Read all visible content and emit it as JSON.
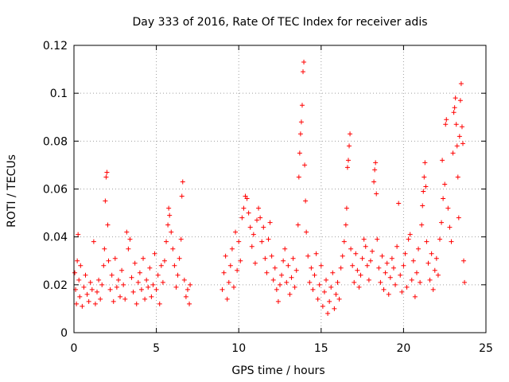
{
  "chart_data": {
    "type": "scatter",
    "title": "Day 333 of 2016, Rate Of TEC Index for receiver adis",
    "xlabel": "GPS time / hours",
    "ylabel": "ROTI / TECUs",
    "xlim": [
      0,
      25
    ],
    "ylim": [
      0,
      0.12
    ],
    "xticks": [
      0,
      5,
      10,
      15,
      20,
      25
    ],
    "xtick_labels": [
      "0",
      "5",
      "10",
      "15",
      "20",
      "25"
    ],
    "yticks": [
      0,
      0.02,
      0.04,
      0.06,
      0.08,
      0.1,
      0.12
    ],
    "ytick_labels": [
      "0",
      "0.02",
      "0.04",
      "0.06",
      "0.08",
      "0.1",
      "0.12"
    ],
    "grid": true,
    "marker": "+",
    "color": "#ff0000",
    "series": [
      {
        "name": "adis",
        "points": [
          [
            0.05,
            0.025
          ],
          [
            0.1,
            0.018
          ],
          [
            0.15,
            0.012
          ],
          [
            0.2,
            0.03
          ],
          [
            0.25,
            0.041
          ],
          [
            0.3,
            0.022
          ],
          [
            0.35,
            0.015
          ],
          [
            0.4,
            0.028
          ],
          [
            0.5,
            0.011
          ],
          [
            0.6,
            0.019
          ],
          [
            0.7,
            0.024
          ],
          [
            0.8,
            0.016
          ],
          [
            0.9,
            0.013
          ],
          [
            1.0,
            0.021
          ],
          [
            1.1,
            0.018
          ],
          [
            1.2,
            0.038
          ],
          [
            1.3,
            0.012
          ],
          [
            1.4,
            0.017
          ],
          [
            1.5,
            0.022
          ],
          [
            1.6,
            0.014
          ],
          [
            1.7,
            0.02
          ],
          [
            1.8,
            0.028
          ],
          [
            1.85,
            0.035
          ],
          [
            1.9,
            0.055
          ],
          [
            1.95,
            0.065
          ],
          [
            2.0,
            0.067
          ],
          [
            2.05,
            0.045
          ],
          [
            2.1,
            0.03
          ],
          [
            2.2,
            0.018
          ],
          [
            2.3,
            0.024
          ],
          [
            2.4,
            0.013
          ],
          [
            2.5,
            0.031
          ],
          [
            2.6,
            0.019
          ],
          [
            2.7,
            0.022
          ],
          [
            2.8,
            0.015
          ],
          [
            2.9,
            0.026
          ],
          [
            3.0,
            0.02
          ],
          [
            3.1,
            0.014
          ],
          [
            3.2,
            0.042
          ],
          [
            3.3,
            0.035
          ],
          [
            3.4,
            0.039
          ],
          [
            3.5,
            0.023
          ],
          [
            3.6,
            0.017
          ],
          [
            3.7,
            0.029
          ],
          [
            3.8,
            0.012
          ],
          [
            3.9,
            0.021
          ],
          [
            4.0,
            0.025
          ],
          [
            4.1,
            0.018
          ],
          [
            4.2,
            0.031
          ],
          [
            4.3,
            0.014
          ],
          [
            4.4,
            0.022
          ],
          [
            4.5,
            0.019
          ],
          [
            4.6,
            0.027
          ],
          [
            4.7,
            0.015
          ],
          [
            4.8,
            0.02
          ],
          [
            4.9,
            0.033
          ],
          [
            5.0,
            0.018
          ],
          [
            5.1,
            0.024
          ],
          [
            5.2,
            0.012
          ],
          [
            5.3,
            0.028
          ],
          [
            5.4,
            0.021
          ],
          [
            5.5,
            0.03
          ],
          [
            5.6,
            0.038
          ],
          [
            5.7,
            0.045
          ],
          [
            5.75,
            0.052
          ],
          [
            5.8,
            0.049
          ],
          [
            5.9,
            0.042
          ],
          [
            6.0,
            0.035
          ],
          [
            6.1,
            0.028
          ],
          [
            6.2,
            0.019
          ],
          [
            6.3,
            0.024
          ],
          [
            6.4,
            0.031
          ],
          [
            6.5,
            0.039
          ],
          [
            6.55,
            0.057
          ],
          [
            6.6,
            0.063
          ],
          [
            6.7,
            0.022
          ],
          [
            6.8,
            0.015
          ],
          [
            6.9,
            0.018
          ],
          [
            7.0,
            0.012
          ],
          [
            7.05,
            0.02
          ],
          [
            9.0,
            0.018
          ],
          [
            9.1,
            0.025
          ],
          [
            9.2,
            0.032
          ],
          [
            9.3,
            0.014
          ],
          [
            9.4,
            0.021
          ],
          [
            9.5,
            0.028
          ],
          [
            9.6,
            0.035
          ],
          [
            9.7,
            0.019
          ],
          [
            9.8,
            0.042
          ],
          [
            9.9,
            0.026
          ],
          [
            10.0,
            0.038
          ],
          [
            10.1,
            0.03
          ],
          [
            10.2,
            0.048
          ],
          [
            10.3,
            0.052
          ],
          [
            10.4,
            0.057
          ],
          [
            10.5,
            0.056
          ],
          [
            10.6,
            0.05
          ],
          [
            10.7,
            0.044
          ],
          [
            10.8,
            0.036
          ],
          [
            10.9,
            0.041
          ],
          [
            11.0,
            0.029
          ],
          [
            11.1,
            0.047
          ],
          [
            11.2,
            0.052
          ],
          [
            11.3,
            0.048
          ],
          [
            11.4,
            0.038
          ],
          [
            11.5,
            0.044
          ],
          [
            11.6,
            0.031
          ],
          [
            11.7,
            0.025
          ],
          [
            11.8,
            0.039
          ],
          [
            11.9,
            0.046
          ],
          [
            12.0,
            0.032
          ],
          [
            12.1,
            0.022
          ],
          [
            12.2,
            0.027
          ],
          [
            12.3,
            0.018
          ],
          [
            12.4,
            0.013
          ],
          [
            12.5,
            0.02
          ],
          [
            12.6,
            0.024
          ],
          [
            12.7,
            0.03
          ],
          [
            12.8,
            0.035
          ],
          [
            12.9,
            0.021
          ],
          [
            13.0,
            0.028
          ],
          [
            13.1,
            0.016
          ],
          [
            13.2,
            0.023
          ],
          [
            13.3,
            0.031
          ],
          [
            13.4,
            0.019
          ],
          [
            13.5,
            0.026
          ],
          [
            13.6,
            0.045
          ],
          [
            13.65,
            0.065
          ],
          [
            13.7,
            0.075
          ],
          [
            13.75,
            0.083
          ],
          [
            13.8,
            0.088
          ],
          [
            13.85,
            0.095
          ],
          [
            13.9,
            0.109
          ],
          [
            13.95,
            0.113
          ],
          [
            14.0,
            0.07
          ],
          [
            14.05,
            0.055
          ],
          [
            14.1,
            0.042
          ],
          [
            14.2,
            0.032
          ],
          [
            14.3,
            0.021
          ],
          [
            14.4,
            0.027
          ],
          [
            14.5,
            0.018
          ],
          [
            14.6,
            0.024
          ],
          [
            14.7,
            0.033
          ],
          [
            14.8,
            0.014
          ],
          [
            14.9,
            0.02
          ],
          [
            15.0,
            0.028
          ],
          [
            15.1,
            0.011
          ],
          [
            15.2,
            0.017
          ],
          [
            15.3,
            0.022
          ],
          [
            15.4,
            0.008
          ],
          [
            15.5,
            0.013
          ],
          [
            15.6,
            0.019
          ],
          [
            15.7,
            0.025
          ],
          [
            15.8,
            0.01
          ],
          [
            15.9,
            0.016
          ],
          [
            16.0,
            0.021
          ],
          [
            16.1,
            0.014
          ],
          [
            16.2,
            0.027
          ],
          [
            16.3,
            0.032
          ],
          [
            16.4,
            0.038
          ],
          [
            16.5,
            0.045
          ],
          [
            16.55,
            0.052
          ],
          [
            16.6,
            0.069
          ],
          [
            16.65,
            0.072
          ],
          [
            16.7,
            0.078
          ],
          [
            16.75,
            0.083
          ],
          [
            16.8,
            0.035
          ],
          [
            16.9,
            0.028
          ],
          [
            17.0,
            0.021
          ],
          [
            17.1,
            0.033
          ],
          [
            17.2,
            0.026
          ],
          [
            17.3,
            0.019
          ],
          [
            17.4,
            0.024
          ],
          [
            17.5,
            0.031
          ],
          [
            17.6,
            0.039
          ],
          [
            17.7,
            0.036
          ],
          [
            17.8,
            0.028
          ],
          [
            17.9,
            0.022
          ],
          [
            18.0,
            0.03
          ],
          [
            18.1,
            0.034
          ],
          [
            18.2,
            0.063
          ],
          [
            18.25,
            0.068
          ],
          [
            18.3,
            0.071
          ],
          [
            18.35,
            0.058
          ],
          [
            18.4,
            0.039
          ],
          [
            18.5,
            0.027
          ],
          [
            18.6,
            0.021
          ],
          [
            18.7,
            0.032
          ],
          [
            18.8,
            0.018
          ],
          [
            18.9,
            0.025
          ],
          [
            19.0,
            0.029
          ],
          [
            19.1,
            0.016
          ],
          [
            19.2,
            0.023
          ],
          [
            19.3,
            0.031
          ],
          [
            19.4,
            0.027
          ],
          [
            19.5,
            0.02
          ],
          [
            19.6,
            0.036
          ],
          [
            19.7,
            0.054
          ],
          [
            19.8,
            0.024
          ],
          [
            19.9,
            0.017
          ],
          [
            20.0,
            0.028
          ],
          [
            20.1,
            0.033
          ],
          [
            20.2,
            0.019
          ],
          [
            20.3,
            0.039
          ],
          [
            20.4,
            0.041
          ],
          [
            20.5,
            0.022
          ],
          [
            20.6,
            0.03
          ],
          [
            20.7,
            0.015
          ],
          [
            20.8,
            0.025
          ],
          [
            20.9,
            0.035
          ],
          [
            21.0,
            0.021
          ],
          [
            21.1,
            0.045
          ],
          [
            21.15,
            0.053
          ],
          [
            21.2,
            0.059
          ],
          [
            21.25,
            0.065
          ],
          [
            21.3,
            0.071
          ],
          [
            21.35,
            0.061
          ],
          [
            21.4,
            0.038
          ],
          [
            21.5,
            0.029
          ],
          [
            21.6,
            0.022
          ],
          [
            21.7,
            0.033
          ],
          [
            21.8,
            0.018
          ],
          [
            21.9,
            0.026
          ],
          [
            22.0,
            0.031
          ],
          [
            22.1,
            0.024
          ],
          [
            22.2,
            0.039
          ],
          [
            22.3,
            0.046
          ],
          [
            22.35,
            0.072
          ],
          [
            22.4,
            0.056
          ],
          [
            22.5,
            0.062
          ],
          [
            22.55,
            0.087
          ],
          [
            22.6,
            0.089
          ],
          [
            22.7,
            0.052
          ],
          [
            22.8,
            0.044
          ],
          [
            22.9,
            0.038
          ],
          [
            23.0,
            0.075
          ],
          [
            23.05,
            0.092
          ],
          [
            23.1,
            0.094
          ],
          [
            23.15,
            0.098
          ],
          [
            23.2,
            0.087
          ],
          [
            23.25,
            0.078
          ],
          [
            23.3,
            0.065
          ],
          [
            23.35,
            0.048
          ],
          [
            23.4,
            0.082
          ],
          [
            23.45,
            0.097
          ],
          [
            23.5,
            0.104
          ],
          [
            23.55,
            0.086
          ],
          [
            23.6,
            0.079
          ],
          [
            23.65,
            0.03
          ],
          [
            23.7,
            0.021
          ]
        ]
      }
    ]
  }
}
